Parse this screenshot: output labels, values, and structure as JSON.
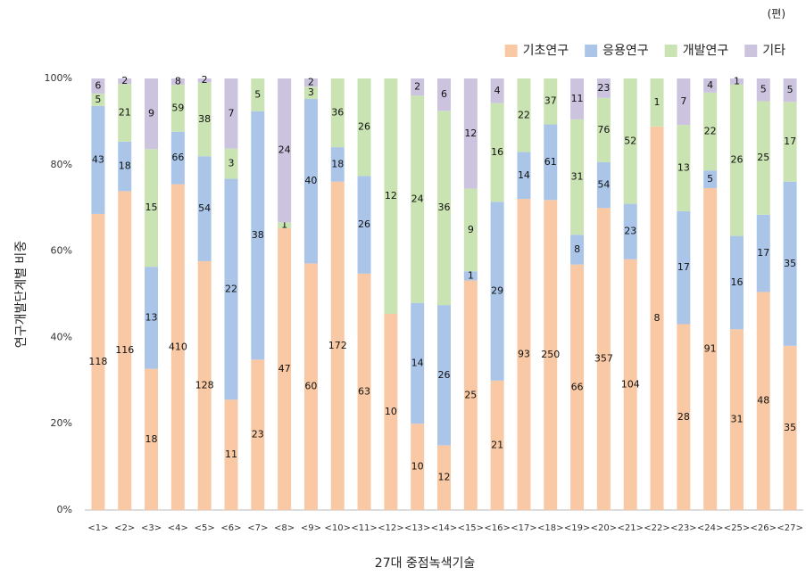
{
  "chart_data": {
    "type": "bar",
    "stacking": "percent",
    "unit": "(편)",
    "y_label": "연구개발단계별 비중",
    "x_label": "27대 중점녹색기술",
    "categories": [
      "<1>",
      "<2>",
      "<3>",
      "<4>",
      "<5>",
      "<6>",
      "<7>",
      "<8>",
      "<9>",
      "<10>",
      "<11>",
      "<12>",
      "<13>",
      "<14>",
      "<15>",
      "<16>",
      "<17>",
      "<18>",
      "<19>",
      "<20>",
      "<21>",
      "<22>",
      "<23>",
      "<24>",
      "<25>",
      "<26>",
      "<27>"
    ],
    "series": [
      {
        "name": "기초연구",
        "color": "#f9c9a5",
        "values": [
          118,
          116,
          18,
          410,
          128,
          11,
          23,
          47,
          60,
          172,
          63,
          10,
          10,
          12,
          25,
          21,
          93,
          250,
          66,
          357,
          104,
          8,
          28,
          91,
          31,
          48,
          35
        ]
      },
      {
        "name": "응용연구",
        "color": "#aac5e8",
        "values": [
          43,
          18,
          13,
          66,
          54,
          22,
          38,
          null,
          40,
          18,
          26,
          null,
          14,
          26,
          1,
          29,
          14,
          61,
          8,
          54,
          23,
          null,
          17,
          5,
          16,
          17,
          35
        ]
      },
      {
        "name": "개발연구",
        "color": "#cae3b2",
        "values": [
          5,
          21,
          15,
          59,
          38,
          3,
          5,
          1,
          3,
          36,
          26,
          12,
          24,
          36,
          9,
          16,
          22,
          37,
          31,
          76,
          52,
          1,
          13,
          22,
          26,
          25,
          17
        ]
      },
      {
        "name": "기타",
        "color": "#ccc4de",
        "values": [
          6,
          2,
          9,
          8,
          2,
          7,
          null,
          24,
          2,
          null,
          null,
          null,
          2,
          6,
          12,
          4,
          null,
          null,
          11,
          23,
          null,
          null,
          7,
          4,
          1,
          5,
          5
        ]
      }
    ],
    "ylim": [
      0,
      100
    ],
    "yticks": [
      {
        "value": 0,
        "label": "0%"
      },
      {
        "value": 20,
        "label": "20%"
      },
      {
        "value": 40,
        "label": "40%"
      },
      {
        "value": 60,
        "label": "60%"
      },
      {
        "value": 80,
        "label": "80%"
      },
      {
        "value": 100,
        "label": "100%"
      }
    ],
    "legend": "top-right"
  }
}
